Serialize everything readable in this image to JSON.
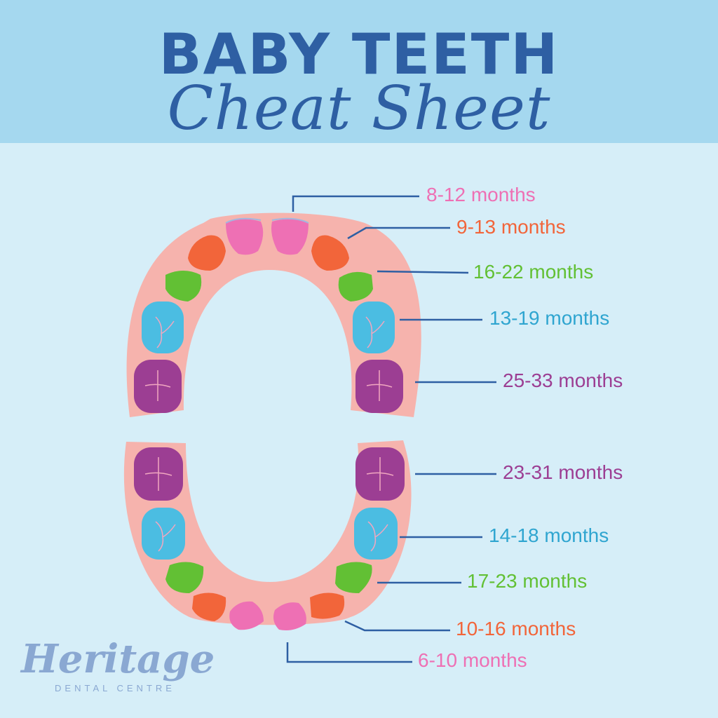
{
  "header": {
    "title": "BABY TEETH",
    "subtitle": "Cheat Sheet"
  },
  "colors": {
    "background": "#d6eef8",
    "header_band": "#a5d8ef",
    "title": "#2e5fa3",
    "gum": "#f6b3ad",
    "leader_line": "#2e5fa3",
    "incisor_central": "#ee70b4",
    "incisor_lateral": "#f2653a",
    "canine": "#62c034",
    "first_molar": "#4bbde2",
    "second_molar": "#9c3e93",
    "logo": "#8aa8d2"
  },
  "upper_teeth": [
    {
      "tooth": "central-incisor",
      "label": "8-12 months",
      "color": "#ee70b4"
    },
    {
      "tooth": "lateral-incisor",
      "label": "9-13 months",
      "color": "#f2653a"
    },
    {
      "tooth": "canine",
      "label": "16-22 months",
      "color": "#62c034"
    },
    {
      "tooth": "first-molar",
      "label": "13-19 months",
      "color": "#2fa5d0"
    },
    {
      "tooth": "second-molar",
      "label": "25-33 months",
      "color": "#9c3e93"
    }
  ],
  "lower_teeth": [
    {
      "tooth": "second-molar",
      "label": "23-31 months",
      "color": "#9c3e93"
    },
    {
      "tooth": "first-molar",
      "label": "14-18 months",
      "color": "#2fa5d0"
    },
    {
      "tooth": "canine",
      "label": "17-23 months",
      "color": "#62c034"
    },
    {
      "tooth": "lateral-incisor",
      "label": "10-16 months",
      "color": "#f2653a"
    },
    {
      "tooth": "central-incisor",
      "label": "6-10 months",
      "color": "#ee70b4"
    }
  ],
  "logo": {
    "name": "Heritage",
    "tagline": "DENTAL CENTRE"
  }
}
